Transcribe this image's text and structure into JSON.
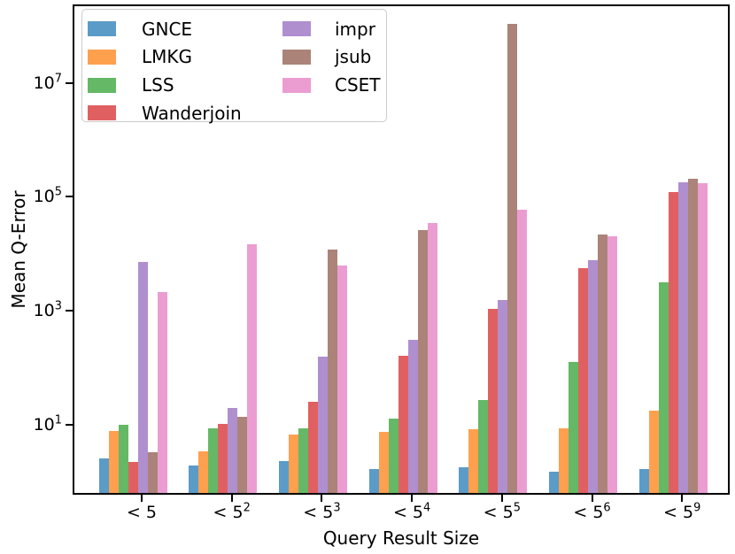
{
  "chart_data": {
    "type": "bar",
    "title": "",
    "xlabel": "Query Result Size",
    "ylabel": "Mean Q-Error",
    "yscale": "log",
    "ylim": [
      0.6,
      240000000
    ],
    "ytick_exponents": [
      1,
      3,
      5,
      7
    ],
    "grid": false,
    "legend": {
      "position": "upper left",
      "ncol": 2,
      "rows_per_column": 4
    },
    "categories": [
      {
        "base": "< 5",
        "exp": ""
      },
      {
        "base": "< 5",
        "exp": "2"
      },
      {
        "base": "< 5",
        "exp": "3"
      },
      {
        "base": "< 5",
        "exp": "4"
      },
      {
        "base": "< 5",
        "exp": "5"
      },
      {
        "base": "< 5",
        "exp": "6"
      },
      {
        "base": "< 5",
        "exp": "9"
      }
    ],
    "series": [
      {
        "name": "GNCE",
        "color": "#5B9BC8",
        "values": [
          2.6,
          1.9,
          2.3,
          1.7,
          1.8,
          1.5,
          1.7
        ]
      },
      {
        "name": "LMKG",
        "color": "#FFA04F",
        "values": [
          7.8,
          3.4,
          6.8,
          7.6,
          8.3,
          8.6,
          18
        ]
      },
      {
        "name": "LSS",
        "color": "#65B865",
        "values": [
          10,
          8.6,
          8.7,
          13,
          27,
          125,
          3200
        ]
      },
      {
        "name": "Wanderjoin",
        "color": "#E06062",
        "values": [
          2.2,
          10.5,
          25,
          165,
          1100,
          5700,
          120000
        ]
      },
      {
        "name": "impr",
        "color": "#AF8FCE",
        "values": [
          7200,
          20,
          160,
          310,
          1560,
          7700,
          180000
        ]
      },
      {
        "name": "jsub",
        "color": "#AB8378",
        "values": [
          3.3,
          14,
          12000,
          26000,
          110000000,
          22000,
          205000
        ]
      },
      {
        "name": "CSET",
        "color": "#EB9DD2",
        "values": [
          2100,
          15000,
          6200,
          35000,
          60000,
          20000,
          175000
        ]
      }
    ]
  },
  "colors": {
    "axis": "#000000",
    "text": "#000000",
    "background": "#ffffff",
    "legend_border": "#cccccc"
  }
}
